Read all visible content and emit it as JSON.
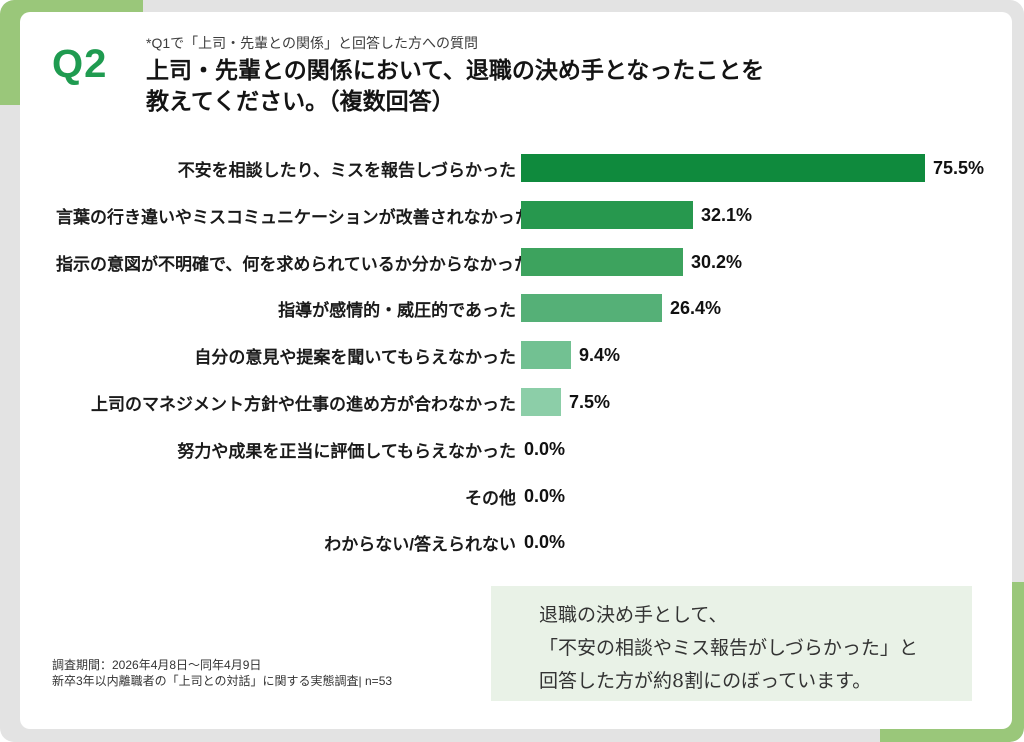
{
  "header": {
    "q_label": "Q2",
    "pre_title": "*Q1で「上司・先輩との関係」と回答した方への質問",
    "title_lines": [
      "上司・先輩との関係において、退職の決め手となったことを",
      "教えてください。（複数回答）"
    ]
  },
  "chart_data": {
    "type": "bar",
    "orientation": "horizontal",
    "title": "上司・先輩との関係において、退職の決め手となったこと（複数回答）",
    "categories": [
      "不安を相談したり、ミスを報告しづらかった",
      "言葉の行き違いやミスコミュニケーションが改善されなかった",
      "指示の意図が不明確で、何を求められているか分からなかった",
      "指導が感情的・威圧的であった",
      "自分の意見や提案を聞いてもらえなかった",
      "上司のマネジメント方針や仕事の進め方が合わなかった",
      "努力や成果を正当に評価してもらえなかった",
      "その他",
      "わからない/答えられない"
    ],
    "values": [
      75.5,
      32.1,
      30.2,
      26.4,
      9.4,
      7.5,
      0.0,
      0.0,
      0.0
    ],
    "value_labels": [
      "75.5%",
      "32.1%",
      "30.2%",
      "26.4%",
      "9.4%",
      "7.5%",
      "0.0%",
      "0.0%",
      "0.0%"
    ],
    "bar_colors": [
      "#0f8a3d",
      "#27984e",
      "#3da35e",
      "#55b077",
      "#72c192",
      "#8ccea8",
      null,
      null,
      null
    ],
    "xlim": [
      0,
      91
    ],
    "axis": "hidden",
    "grid": false,
    "legend": "none",
    "value_label_position": "right-of-bar"
  },
  "note_box": {
    "lines": [
      "退職の決め手として、",
      "「不安の相談やミス報告がしづらかった」と",
      "回答した方が約8割にのぼっています。"
    ],
    "background": "#e9f2e7"
  },
  "footer": {
    "lines": [
      "調査期間：2026年4月8日～同年4月9日",
      "新卒3年以内離職者の「上司との対話」に関する実態調査| n=53"
    ]
  },
  "colors": {
    "accent_green": "#1f9b50",
    "corner_green": "#9ac77a",
    "page_gray": "#e3e3e3",
    "card_white": "#ffffff",
    "text_dark": "#1a1a1a"
  }
}
